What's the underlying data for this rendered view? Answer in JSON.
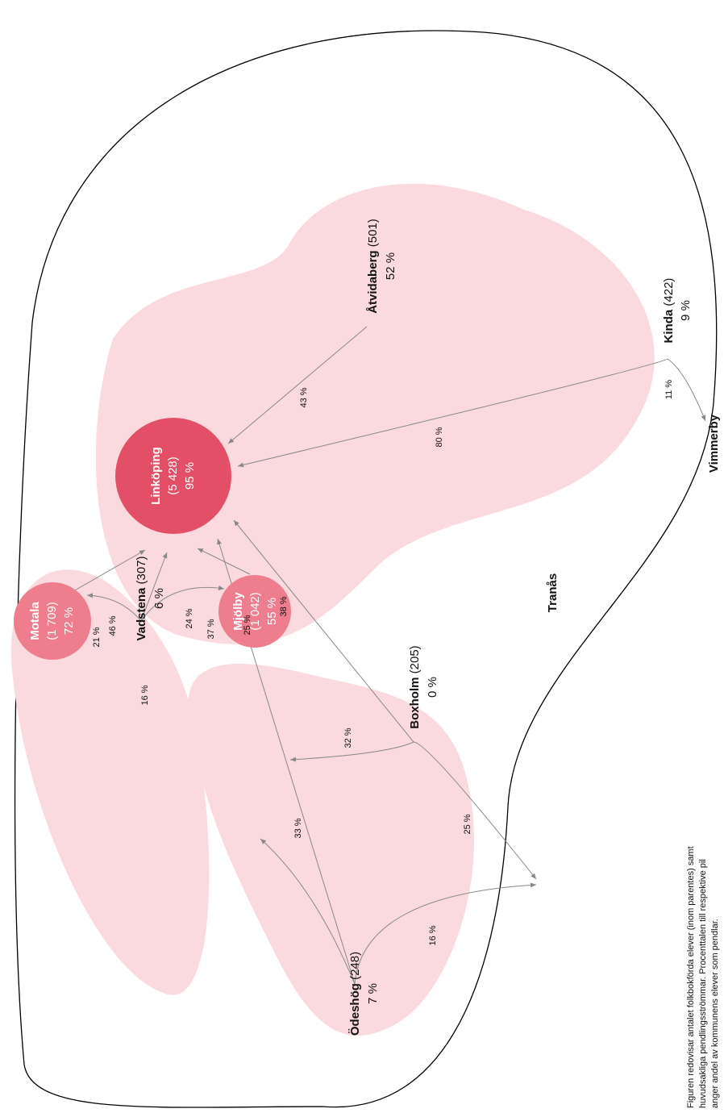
{
  "nodes": [
    {
      "name": "Linköping",
      "count": "(5 428)",
      "share": "95 %"
    },
    {
      "name": "Åtvidaberg",
      "count": "(501)",
      "share": "52 %"
    },
    {
      "name": "Kinda",
      "count": "(422)",
      "share": "9 %"
    },
    {
      "name": "Motala",
      "count": "(1 709)",
      "share": "72 %"
    },
    {
      "name": "Mjölby",
      "count": "(1 042)",
      "share": "55 %"
    },
    {
      "name": "Vadstena",
      "count": "(307)",
      "share": "6 %"
    },
    {
      "name": "Boxholm",
      "count": "(205)",
      "share": "0 %"
    },
    {
      "name": "Ödeshög",
      "count": "(248)",
      "share": "7 %"
    },
    {
      "name": "Vimmerby"
    },
    {
      "name": "Tranås"
    }
  ],
  "edges": [
    {
      "label": "43 %"
    },
    {
      "label": "80 %"
    },
    {
      "label": "11 %"
    },
    {
      "label": "21 %"
    },
    {
      "label": "16 %"
    },
    {
      "label": "46 %"
    },
    {
      "label": "24 %"
    },
    {
      "label": "37 %"
    },
    {
      "label": "25 %"
    },
    {
      "label": "38 %"
    },
    {
      "label": "32 %"
    },
    {
      "label": "25 %"
    },
    {
      "label": "33 %"
    },
    {
      "label": "16 %"
    }
  ],
  "caption": [
    "Figuren redovisar antalet folkbokförda elever (inom parentes) samt",
    "huvudsakliga pendlingsströmmar. Procenttalen till respektive pil",
    "anger andel av kommunens elever som pendlar."
  ]
}
